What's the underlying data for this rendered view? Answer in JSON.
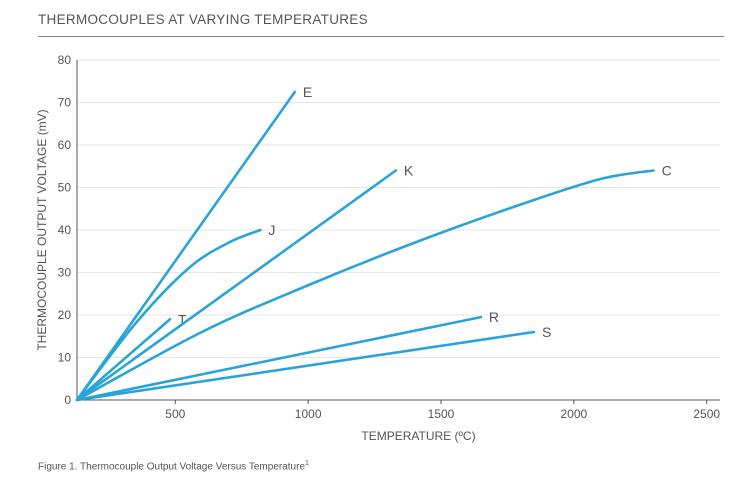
{
  "title": "THERMOCOUPLES AT VARYING TEMPERATURES",
  "caption": "Figure 1. Thermocouple Output Voltage Versus Temperature",
  "caption_superscript": "1",
  "colors": {
    "series": "#2aa4d8",
    "grid": "#e6e6e6",
    "axis": "#555555",
    "text": "#555555"
  },
  "chart_data": {
    "type": "line",
    "title": "THERMOCOUPLES AT VARYING TEMPERATURES",
    "xlabel": "TEMPERATURE (ºC)",
    "ylabel": "THERMOCOUPLE OUTPUT VOLTAGE (mV)",
    "xlim": [
      130,
      2550
    ],
    "ylim": [
      0,
      80
    ],
    "x_ticks": [
      500,
      1000,
      1500,
      2000,
      2500
    ],
    "y_ticks": [
      0,
      10,
      20,
      30,
      40,
      50,
      60,
      70,
      80
    ],
    "grid": "horizontal",
    "legend": "none",
    "series": [
      {
        "name": "E",
        "points": [
          [
            130,
            0
          ],
          [
            950,
            72.5
          ]
        ]
      },
      {
        "name": "J",
        "points": [
          [
            130,
            0
          ],
          [
            350,
            18
          ],
          [
            550,
            31
          ],
          [
            700,
            37
          ],
          [
            820,
            40
          ]
        ]
      },
      {
        "name": "T",
        "points": [
          [
            130,
            0
          ],
          [
            480,
            19
          ]
        ]
      },
      {
        "name": "K",
        "points": [
          [
            130,
            0
          ],
          [
            1330,
            54
          ]
        ]
      },
      {
        "name": "C",
        "points": [
          [
            130,
            0
          ],
          [
            600,
            16
          ],
          [
            1000,
            27
          ],
          [
            1400,
            37
          ],
          [
            1800,
            46
          ],
          [
            2100,
            52
          ],
          [
            2300,
            54
          ]
        ]
      },
      {
        "name": "R",
        "points": [
          [
            130,
            0
          ],
          [
            1650,
            19.5
          ]
        ]
      },
      {
        "name": "S",
        "points": [
          [
            130,
            0
          ],
          [
            1850,
            16
          ]
        ]
      }
    ]
  }
}
